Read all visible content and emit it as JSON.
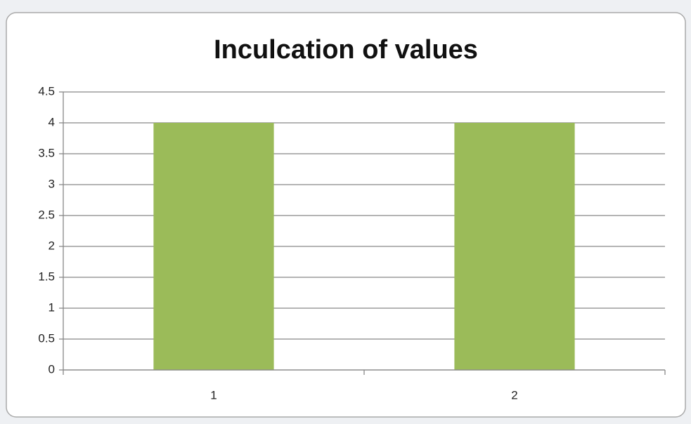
{
  "chart_data": {
    "type": "bar",
    "title": "Inculcation of values",
    "categories": [
      "1",
      "2"
    ],
    "values": [
      4,
      4
    ],
    "color": "#9bbb59",
    "ylim": [
      0,
      4.5
    ],
    "yticks": [
      0,
      0.5,
      1,
      1.5,
      2,
      2.5,
      3,
      3.5,
      4,
      4.5
    ],
    "grid": true
  }
}
